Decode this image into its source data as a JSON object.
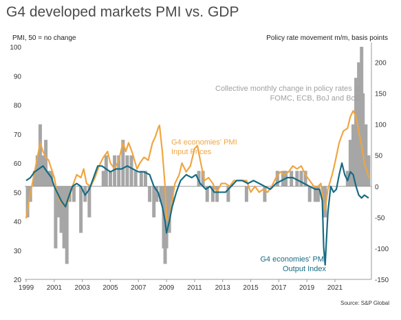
{
  "title": "G4 developed markets PMI vs. GDP",
  "source": "Source: S&P Global",
  "colors": {
    "input_prices": "#f0a541",
    "output_index": "#166b82",
    "bars": "#a6a6a6",
    "grid": "#bdbdbd"
  },
  "chart_data": {
    "type": "line",
    "left_axis_label": "PMI, 50 = no change",
    "right_axis_label": "Policy rate movement m/m, basis points",
    "left_ylim": [
      20,
      100
    ],
    "left_ticks": [
      "20",
      "30",
      "40",
      "50",
      "60",
      "70",
      "80",
      "90",
      "100"
    ],
    "right_ylim": [
      -150,
      225
    ],
    "right_ticks": [
      "-150",
      "-100",
      "-50",
      "0",
      "50",
      "100",
      "150",
      "200"
    ],
    "xlim": [
      1998.9,
      2023.6
    ],
    "x_ticks": [
      "1999",
      "2001",
      "2003",
      "2005",
      "2007",
      "2009",
      "2011",
      "2013",
      "2015",
      "2017",
      "2019",
      "2021"
    ],
    "grid": false,
    "annotations": {
      "bars_label": [
        "Collective monthly change in policy rates at",
        "FOMC, ECB, BoJ and BoE"
      ],
      "input_label": [
        "G4 economies' PMI",
        "Input Prices"
      ],
      "output_label": [
        "G4 economies' PMI",
        "Output Index"
      ]
    },
    "series": [
      {
        "name": "G4 economies' PMI Input Prices",
        "axis": "left",
        "points": [
          [
            1999.0,
            41
          ],
          [
            1999.2,
            47
          ],
          [
            1999.4,
            52
          ],
          [
            1999.6,
            57
          ],
          [
            1999.8,
            62
          ],
          [
            2000.0,
            67
          ],
          [
            2000.2,
            64
          ],
          [
            2000.4,
            62
          ],
          [
            2000.6,
            61
          ],
          [
            2000.8,
            58
          ],
          [
            2001.0,
            55
          ],
          [
            2001.2,
            50
          ],
          [
            2001.4,
            47
          ],
          [
            2001.6,
            46
          ],
          [
            2001.8,
            45
          ],
          [
            2002.0,
            47
          ],
          [
            2002.3,
            52
          ],
          [
            2002.6,
            56
          ],
          [
            2002.9,
            55
          ],
          [
            2003.1,
            58
          ],
          [
            2003.3,
            53
          ],
          [
            2003.6,
            52
          ],
          [
            2003.9,
            55
          ],
          [
            2004.2,
            59
          ],
          [
            2004.5,
            62
          ],
          [
            2004.8,
            64
          ],
          [
            2005.0,
            60
          ],
          [
            2005.3,
            58
          ],
          [
            2005.6,
            61
          ],
          [
            2005.9,
            67
          ],
          [
            2006.1,
            64
          ],
          [
            2006.3,
            67
          ],
          [
            2006.6,
            63
          ],
          [
            2006.9,
            58
          ],
          [
            2007.1,
            60
          ],
          [
            2007.4,
            62
          ],
          [
            2007.7,
            61
          ],
          [
            2008.0,
            67
          ],
          [
            2008.2,
            69
          ],
          [
            2008.4,
            72
          ],
          [
            2008.5,
            73
          ],
          [
            2008.7,
            64
          ],
          [
            2008.9,
            52
          ],
          [
            2009.0,
            41
          ],
          [
            2009.2,
            40
          ],
          [
            2009.4,
            47
          ],
          [
            2009.6,
            53
          ],
          [
            2009.9,
            56
          ],
          [
            2010.1,
            60
          ],
          [
            2010.4,
            57
          ],
          [
            2010.7,
            59
          ],
          [
            2011.0,
            65
          ],
          [
            2011.2,
            66
          ],
          [
            2011.4,
            61
          ],
          [
            2011.7,
            54
          ],
          [
            2012.0,
            55
          ],
          [
            2012.3,
            53
          ],
          [
            2012.6,
            50
          ],
          [
            2012.9,
            53
          ],
          [
            2013.2,
            53
          ],
          [
            2013.5,
            52
          ],
          [
            2013.8,
            54
          ],
          [
            2014.1,
            54
          ],
          [
            2014.4,
            54
          ],
          [
            2014.7,
            54
          ],
          [
            2015.0,
            50
          ],
          [
            2015.3,
            52
          ],
          [
            2015.6,
            50
          ],
          [
            2015.9,
            51
          ],
          [
            2016.2,
            50
          ],
          [
            2016.5,
            52
          ],
          [
            2016.8,
            55
          ],
          [
            2017.1,
            57
          ],
          [
            2017.4,
            56
          ],
          [
            2017.7,
            57
          ],
          [
            2018.0,
            59
          ],
          [
            2018.3,
            58
          ],
          [
            2018.6,
            59
          ],
          [
            2018.9,
            56
          ],
          [
            2019.2,
            54
          ],
          [
            2019.5,
            52
          ],
          [
            2019.8,
            52
          ],
          [
            2020.0,
            53
          ],
          [
            2020.2,
            45
          ],
          [
            2020.3,
            44
          ],
          [
            2020.5,
            51
          ],
          [
            2020.8,
            56
          ],
          [
            2021.0,
            60
          ],
          [
            2021.3,
            67
          ],
          [
            2021.6,
            71
          ],
          [
            2021.9,
            72
          ],
          [
            2022.1,
            76
          ],
          [
            2022.3,
            78
          ],
          [
            2022.5,
            76
          ],
          [
            2022.7,
            71
          ],
          [
            2022.9,
            66
          ],
          [
            2023.1,
            60
          ],
          [
            2023.3,
            57
          ],
          [
            2023.4,
            55
          ]
        ]
      },
      {
        "name": "G4 economies' PMI Output Index",
        "axis": "left",
        "points": [
          [
            1999.0,
            54
          ],
          [
            1999.3,
            55
          ],
          [
            1999.6,
            57
          ],
          [
            1999.9,
            58
          ],
          [
            2000.2,
            59
          ],
          [
            2000.5,
            57
          ],
          [
            2000.8,
            55
          ],
          [
            2001.0,
            52
          ],
          [
            2001.2,
            50
          ],
          [
            2001.5,
            47
          ],
          [
            2001.8,
            45
          ],
          [
            2002.0,
            48
          ],
          [
            2002.3,
            52
          ],
          [
            2002.6,
            53
          ],
          [
            2002.9,
            52
          ],
          [
            2003.2,
            49
          ],
          [
            2003.5,
            51
          ],
          [
            2003.8,
            55
          ],
          [
            2004.1,
            59
          ],
          [
            2004.4,
            59
          ],
          [
            2004.7,
            58
          ],
          [
            2005.0,
            57
          ],
          [
            2005.4,
            58
          ],
          [
            2005.8,
            58
          ],
          [
            2006.2,
            59
          ],
          [
            2006.6,
            58
          ],
          [
            2007.0,
            57
          ],
          [
            2007.4,
            57
          ],
          [
            2007.8,
            56
          ],
          [
            2008.1,
            52
          ],
          [
            2008.4,
            50
          ],
          [
            2008.7,
            45
          ],
          [
            2008.9,
            40
          ],
          [
            2009.0,
            36
          ],
          [
            2009.2,
            40
          ],
          [
            2009.4,
            45
          ],
          [
            2009.7,
            50
          ],
          [
            2010.0,
            54
          ],
          [
            2010.4,
            56
          ],
          [
            2010.8,
            55
          ],
          [
            2011.1,
            56
          ],
          [
            2011.4,
            53
          ],
          [
            2011.8,
            51
          ],
          [
            2012.1,
            52
          ],
          [
            2012.4,
            50
          ],
          [
            2012.8,
            50
          ],
          [
            2013.2,
            50
          ],
          [
            2013.6,
            52
          ],
          [
            2014.0,
            54
          ],
          [
            2014.4,
            54
          ],
          [
            2014.8,
            53
          ],
          [
            2015.2,
            54
          ],
          [
            2015.6,
            53
          ],
          [
            2016.0,
            52
          ],
          [
            2016.4,
            51
          ],
          [
            2016.8,
            53
          ],
          [
            2017.2,
            54
          ],
          [
            2017.6,
            55
          ],
          [
            2018.0,
            55
          ],
          [
            2018.4,
            54
          ],
          [
            2018.8,
            53
          ],
          [
            2019.2,
            52
          ],
          [
            2019.6,
            51
          ],
          [
            2019.9,
            51
          ],
          [
            2020.1,
            47
          ],
          [
            2020.2,
            31
          ],
          [
            2020.3,
            25
          ],
          [
            2020.5,
            43
          ],
          [
            2020.7,
            52
          ],
          [
            2020.9,
            50
          ],
          [
            2021.1,
            51
          ],
          [
            2021.3,
            56
          ],
          [
            2021.5,
            60
          ],
          [
            2021.7,
            56
          ],
          [
            2021.9,
            54
          ],
          [
            2022.1,
            57
          ],
          [
            2022.3,
            56
          ],
          [
            2022.5,
            52
          ],
          [
            2022.7,
            49
          ],
          [
            2022.9,
            48
          ],
          [
            2023.1,
            49
          ],
          [
            2023.4,
            48
          ]
        ]
      },
      {
        "name": "Collective monthly change in policy rates at FOMC, ECB, BoJ and BoE",
        "type": "bar",
        "axis": "right",
        "points": [
          [
            1999.1,
            -50
          ],
          [
            1999.3,
            -25
          ],
          [
            1999.6,
            25
          ],
          [
            1999.8,
            50
          ],
          [
            2000.0,
            100
          ],
          [
            2000.2,
            50
          ],
          [
            2000.4,
            75
          ],
          [
            2000.6,
            25
          ],
          [
            2000.8,
            25
          ],
          [
            2001.1,
            -100
          ],
          [
            2001.3,
            -50
          ],
          [
            2001.5,
            -75
          ],
          [
            2001.7,
            -100
          ],
          [
            2001.9,
            -125
          ],
          [
            2002.1,
            -25
          ],
          [
            2002.4,
            -25
          ],
          [
            2002.9,
            -75
          ],
          [
            2003.2,
            -25
          ],
          [
            2003.5,
            -50
          ],
          [
            2004.5,
            25
          ],
          [
            2004.7,
            50
          ],
          [
            2005.0,
            25
          ],
          [
            2005.3,
            50
          ],
          [
            2005.6,
            50
          ],
          [
            2005.9,
            75
          ],
          [
            2006.2,
            50
          ],
          [
            2006.5,
            50
          ],
          [
            2006.8,
            25
          ],
          [
            2007.2,
            25
          ],
          [
            2007.5,
            25
          ],
          [
            2007.8,
            -25
          ],
          [
            2008.1,
            -50
          ],
          [
            2008.3,
            -25
          ],
          [
            2008.6,
            -25
          ],
          [
            2008.8,
            -100
          ],
          [
            2008.9,
            -125
          ],
          [
            2009.0,
            -100
          ],
          [
            2009.2,
            -75
          ],
          [
            2009.4,
            -25
          ],
          [
            2011.3,
            25
          ],
          [
            2011.6,
            25
          ],
          [
            2011.9,
            -25
          ],
          [
            2012.3,
            -25
          ],
          [
            2012.6,
            -25
          ],
          [
            2013.4,
            -25
          ],
          [
            2014.7,
            -25
          ],
          [
            2016.0,
            -25
          ],
          [
            2016.9,
            25
          ],
          [
            2017.3,
            25
          ],
          [
            2017.5,
            25
          ],
          [
            2017.9,
            25
          ],
          [
            2018.3,
            25
          ],
          [
            2018.6,
            25
          ],
          [
            2018.9,
            25
          ],
          [
            2019.2,
            -25
          ],
          [
            2019.6,
            -25
          ],
          [
            2019.8,
            -25
          ],
          [
            2020.2,
            -50
          ],
          [
            2020.3,
            -50
          ],
          [
            2021.9,
            25
          ],
          [
            2022.1,
            75
          ],
          [
            2022.3,
            100
          ],
          [
            2022.5,
            175
          ],
          [
            2022.6,
            150
          ],
          [
            2022.7,
            200
          ],
          [
            2022.9,
            225
          ],
          [
            2023.0,
            150
          ],
          [
            2023.2,
            100
          ],
          [
            2023.4,
            50
          ]
        ]
      }
    ]
  }
}
